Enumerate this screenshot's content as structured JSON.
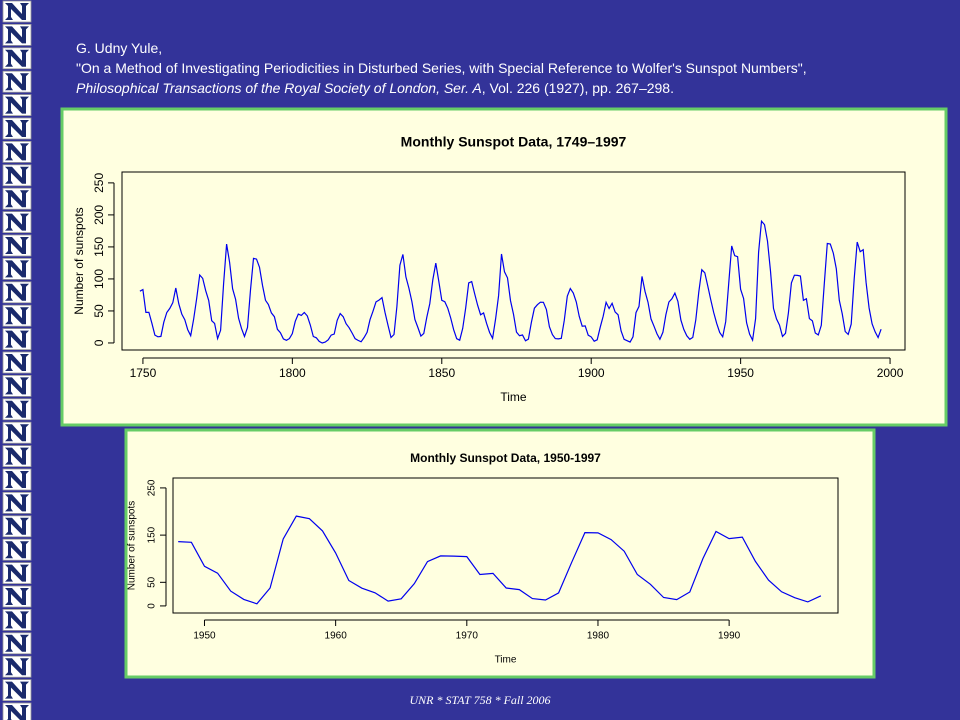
{
  "citation": {
    "author": "G. Udny Yule,",
    "article": "\"On a Method of Investigating Periodicities in Disturbed Series, with Special Reference to Wolfer's Sunspot Numbers\",",
    "journal": "Philosophical Transactions of the Royal Society of London, Ser. A",
    "details": ", Vol. 226 (1927), pp. 267–298."
  },
  "footer": "UNR * STAT 758 * Fall 2006",
  "chart_data": [
    {
      "type": "line",
      "title": "Monthly Sunspot Data, 1749–1997",
      "xlabel": "Time",
      "ylabel": "Number of sunspots",
      "color": "#0000ee",
      "xlim": [
        1743,
        2005
      ],
      "ylim": [
        -11,
        267
      ],
      "xticks": [
        1750,
        1800,
        1850,
        1900,
        1950,
        2000
      ],
      "yticks": [
        0,
        50,
        100,
        150,
        200,
        250
      ],
      "x": [
        1749,
        1750,
        1751,
        1752,
        1753,
        1754,
        1755,
        1756,
        1757,
        1758,
        1759,
        1760,
        1761,
        1762,
        1763,
        1764,
        1765,
        1766,
        1767,
        1768,
        1769,
        1770,
        1771,
        1772,
        1773,
        1774,
        1775,
        1776,
        1777,
        1778,
        1779,
        1780,
        1781,
        1782,
        1783,
        1784,
        1785,
        1786,
        1787,
        1788,
        1789,
        1790,
        1791,
        1792,
        1793,
        1794,
        1795,
        1796,
        1797,
        1798,
        1799,
        1800,
        1801,
        1802,
        1803,
        1804,
        1805,
        1806,
        1807,
        1808,
        1809,
        1810,
        1811,
        1812,
        1813,
        1814,
        1815,
        1816,
        1817,
        1818,
        1819,
        1820,
        1821,
        1822,
        1823,
        1824,
        1825,
        1826,
        1827,
        1828,
        1829,
        1830,
        1831,
        1832,
        1833,
        1834,
        1835,
        1836,
        1837,
        1838,
        1839,
        1840,
        1841,
        1842,
        1843,
        1844,
        1845,
        1846,
        1847,
        1848,
        1849,
        1850,
        1851,
        1852,
        1853,
        1854,
        1855,
        1856,
        1857,
        1858,
        1859,
        1860,
        1861,
        1862,
        1863,
        1864,
        1865,
        1866,
        1867,
        1868,
        1869,
        1870,
        1871,
        1872,
        1873,
        1874,
        1875,
        1876,
        1877,
        1878,
        1879,
        1880,
        1881,
        1882,
        1883,
        1884,
        1885,
        1886,
        1887,
        1888,
        1889,
        1890,
        1891,
        1892,
        1893,
        1894,
        1895,
        1896,
        1897,
        1898,
        1899,
        1900,
        1901,
        1902,
        1903,
        1904,
        1905,
        1906,
        1907,
        1908,
        1909,
        1910,
        1911,
        1912,
        1913,
        1914,
        1915,
        1916,
        1917,
        1918,
        1919,
        1920,
        1921,
        1922,
        1923,
        1924,
        1925,
        1926,
        1927,
        1928,
        1929,
        1930,
        1931,
        1932,
        1933,
        1934,
        1935,
        1936,
        1937,
        1938,
        1939,
        1940,
        1941,
        1942,
        1943,
        1944,
        1945,
        1946,
        1947,
        1948,
        1949,
        1950,
        1951,
        1952,
        1953,
        1954,
        1955,
        1956,
        1957,
        1958,
        1959,
        1960,
        1961,
        1962,
        1963,
        1964,
        1965,
        1966,
        1967,
        1968,
        1969,
        1970,
        1971,
        1972,
        1973,
        1974,
        1975,
        1976,
        1977,
        1978,
        1979,
        1980,
        1981,
        1982,
        1983,
        1984,
        1985,
        1986,
        1987,
        1988,
        1989,
        1990,
        1991,
        1992,
        1993,
        1994,
        1995,
        1996,
        1997
      ],
      "values": [
        80.9,
        83.4,
        47.7,
        47.8,
        30.7,
        12.2,
        9.6,
        10.2,
        32.4,
        47.6,
        54,
        62.9,
        85.9,
        61.2,
        45.1,
        36.4,
        20.9,
        11.4,
        37.8,
        69.8,
        106.1,
        100.8,
        81.6,
        66.5,
        34.8,
        30.6,
        7,
        19.8,
        92.5,
        154.4,
        125.9,
        84.8,
        68.1,
        38.5,
        22.8,
        10.2,
        24.1,
        82.9,
        132,
        130.9,
        118.1,
        89.9,
        66.6,
        60,
        46.9,
        41,
        21.3,
        16,
        6.4,
        4.1,
        6.8,
        14.5,
        34,
        45,
        43.1,
        47.5,
        42.2,
        28.1,
        10.1,
        8.1,
        2.5,
        0,
        1.4,
        5,
        12.2,
        13.9,
        35.4,
        45.8,
        41,
        30.1,
        23.9,
        15.6,
        6.6,
        4,
        1.8,
        8.5,
        16.6,
        36.3,
        49.6,
        64.2,
        67,
        70.9,
        47.8,
        27.5,
        8.5,
        13.2,
        56.9,
        121.5,
        138.3,
        103.2,
        85.7,
        64.6,
        36.7,
        24.2,
        10.7,
        15,
        40.1,
        61.5,
        98.5,
        124.7,
        96.3,
        66.6,
        64.5,
        54.1,
        39,
        20.6,
        6.7,
        4.3,
        22.7,
        54.8,
        93.8,
        95.8,
        77.2,
        59.1,
        44,
        47,
        30.5,
        16.3,
        7.3,
        37.6,
        74,
        139,
        111.2,
        101.6,
        66.2,
        44.7,
        17,
        11.3,
        12.4,
        3.4,
        6,
        32.3,
        54.3,
        59.7,
        63.7,
        63.5,
        52.2,
        25.4,
        13.1,
        6.8,
        6.3,
        7.1,
        35.6,
        73,
        85.1,
        78,
        64,
        41.8,
        26.2,
        26.7,
        12.1,
        9.5,
        2.7,
        5,
        24.4,
        42,
        63.5,
        53.8,
        62,
        48.5,
        43.9,
        18.6,
        5.7,
        3.6,
        1.4,
        9.6,
        47.4,
        57.1,
        103.9,
        80.6,
        63.6,
        37.6,
        26.1,
        14.2,
        5.8,
        16.7,
        44.3,
        63.9,
        69,
        77.8,
        64.9,
        35.7,
        21.2,
        11.1,
        5.7,
        8.7,
        36.1,
        79.7,
        114.4,
        109.6,
        88.8,
        67.8,
        47.5,
        30.6,
        16.3,
        9.6,
        33.2,
        92.6,
        151.6,
        136.3,
        134.7,
        83.9,
        69.4,
        31.5,
        13.9,
        4.4,
        38,
        141.7,
        190.2,
        184.8,
        159,
        112.3,
        53.9,
        37.6,
        27.9,
        10.2,
        15.1,
        47,
        93.8,
        105.9,
        105.5,
        104.5,
        66.6,
        68.9,
        38,
        34.5,
        15.5,
        12.6,
        27.5,
        92.5,
        155.4,
        154.6,
        140.4,
        115.9,
        66.6,
        45.9,
        17.9,
        13.4,
        29.4,
        100.2,
        157.6,
        142.6,
        145.7,
        94.3,
        54.6,
        29.9,
        17.5,
        8.6,
        21.5
      ]
    },
    {
      "type": "line",
      "title": "Monthly Sunspot Data, 1950-1997",
      "xlabel": "Time",
      "ylabel": "Number of sunspots",
      "color": "#0000ee",
      "xlim": [
        1947.6,
        1998.3
      ],
      "ylim": [
        -15,
        271
      ],
      "xticks": [
        1950,
        1960,
        1970,
        1980,
        1990
      ],
      "yticks": [
        0,
        50,
        150,
        250
      ],
      "x": [
        1948,
        1949,
        1950,
        1951,
        1952,
        1953,
        1954,
        1955,
        1956,
        1957,
        1958,
        1959,
        1960,
        1961,
        1962,
        1963,
        1964,
        1965,
        1966,
        1967,
        1968,
        1969,
        1970,
        1971,
        1972,
        1973,
        1974,
        1975,
        1976,
        1977,
        1978,
        1979,
        1980,
        1981,
        1982,
        1983,
        1984,
        1985,
        1986,
        1987,
        1988,
        1989,
        1990,
        1991,
        1992,
        1993,
        1994,
        1995,
        1996,
        1997
      ],
      "values": [
        136.3,
        134.7,
        83.9,
        69.4,
        31.5,
        13.9,
        4.4,
        38,
        141.7,
        190.2,
        184.8,
        159,
        112.3,
        53.9,
        37.6,
        27.9,
        10.2,
        15.1,
        47,
        93.8,
        105.9,
        105.5,
        104.5,
        66.6,
        68.9,
        38,
        34.5,
        15.5,
        12.6,
        27.5,
        92.5,
        155.4,
        154.6,
        140.4,
        115.9,
        66.6,
        45.9,
        17.9,
        13.4,
        29.4,
        100.2,
        157.6,
        142.6,
        145.7,
        94.3,
        54.6,
        29.9,
        17.5,
        8.6,
        21.5
      ]
    }
  ]
}
